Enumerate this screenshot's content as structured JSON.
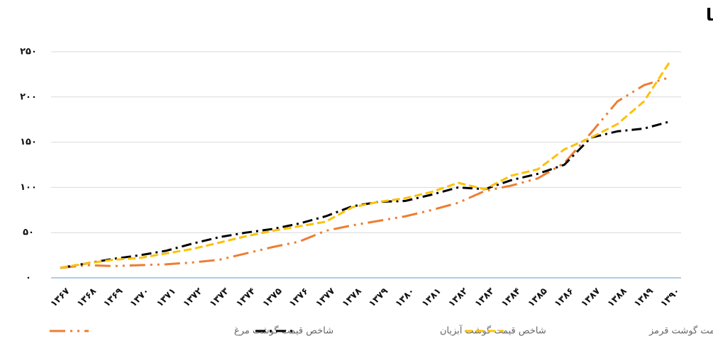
{
  "chart_data": {
    "type": "line",
    "title": "پیوست‌ها",
    "categories": [
      "۱۳۶۷",
      "۱۳۶۸",
      "۱۳۶۹",
      "۱۳۷۰",
      "۱۳۷۱",
      "۱۳۷۲",
      "۱۳۷۳",
      "۱۳۷۴",
      "۱۳۷۵",
      "۱۳۷۶",
      "۱۳۷۷",
      "۱۳۷۸",
      "۱۳۷۹",
      "۱۳۸۰",
      "۱۳۸۱",
      "۱۳۸۲",
      "۱۳۸۳",
      "۱۳۸۴",
      "۱۳۸۵",
      "۱۳۸۶",
      "۱۳۸۷",
      "۱۳۸۸",
      "۱۳۸۹",
      "۱۳۹۰"
    ],
    "series": [
      {
        "name": "شاخص قیمت گوشت مرغ",
        "color": "#ed7d31",
        "values": [
          11,
          14,
          13,
          14,
          15,
          17,
          20,
          27,
          34,
          40,
          52,
          58,
          63,
          68,
          75,
          83,
          96,
          102,
          110,
          127,
          160,
          195,
          213,
          222
        ]
      },
      {
        "name": "شاخص قیمت گوشت آبزیان",
        "color": "#000000",
        "values": [
          11,
          16,
          21,
          25,
          30,
          38,
          45,
          50,
          54,
          60,
          68,
          79,
          84,
          85,
          92,
          100,
          98,
          108,
          115,
          125,
          155,
          162,
          165,
          173
        ]
      },
      {
        "name": "شاخص قیمت گوشت قرمز",
        "color": "#ffc000",
        "values": [
          11,
          16,
          20,
          22,
          27,
          32,
          39,
          46,
          52,
          57,
          62,
          78,
          84,
          88,
          95,
          105,
          98,
          113,
          120,
          142,
          155,
          170,
          195,
          240
        ]
      }
    ],
    "ylim": [
      0,
      250
    ],
    "yticks": [
      {
        "value": 0,
        "label": "۰"
      },
      {
        "value": 50,
        "label": "۵۰"
      },
      {
        "value": 100,
        "label": "۱۰۰"
      },
      {
        "value": 150,
        "label": "۱۵۰"
      },
      {
        "value": 200,
        "label": "۲۰۰"
      },
      {
        "value": 250,
        "label": "۲۵۰"
      }
    ],
    "grid": true
  }
}
